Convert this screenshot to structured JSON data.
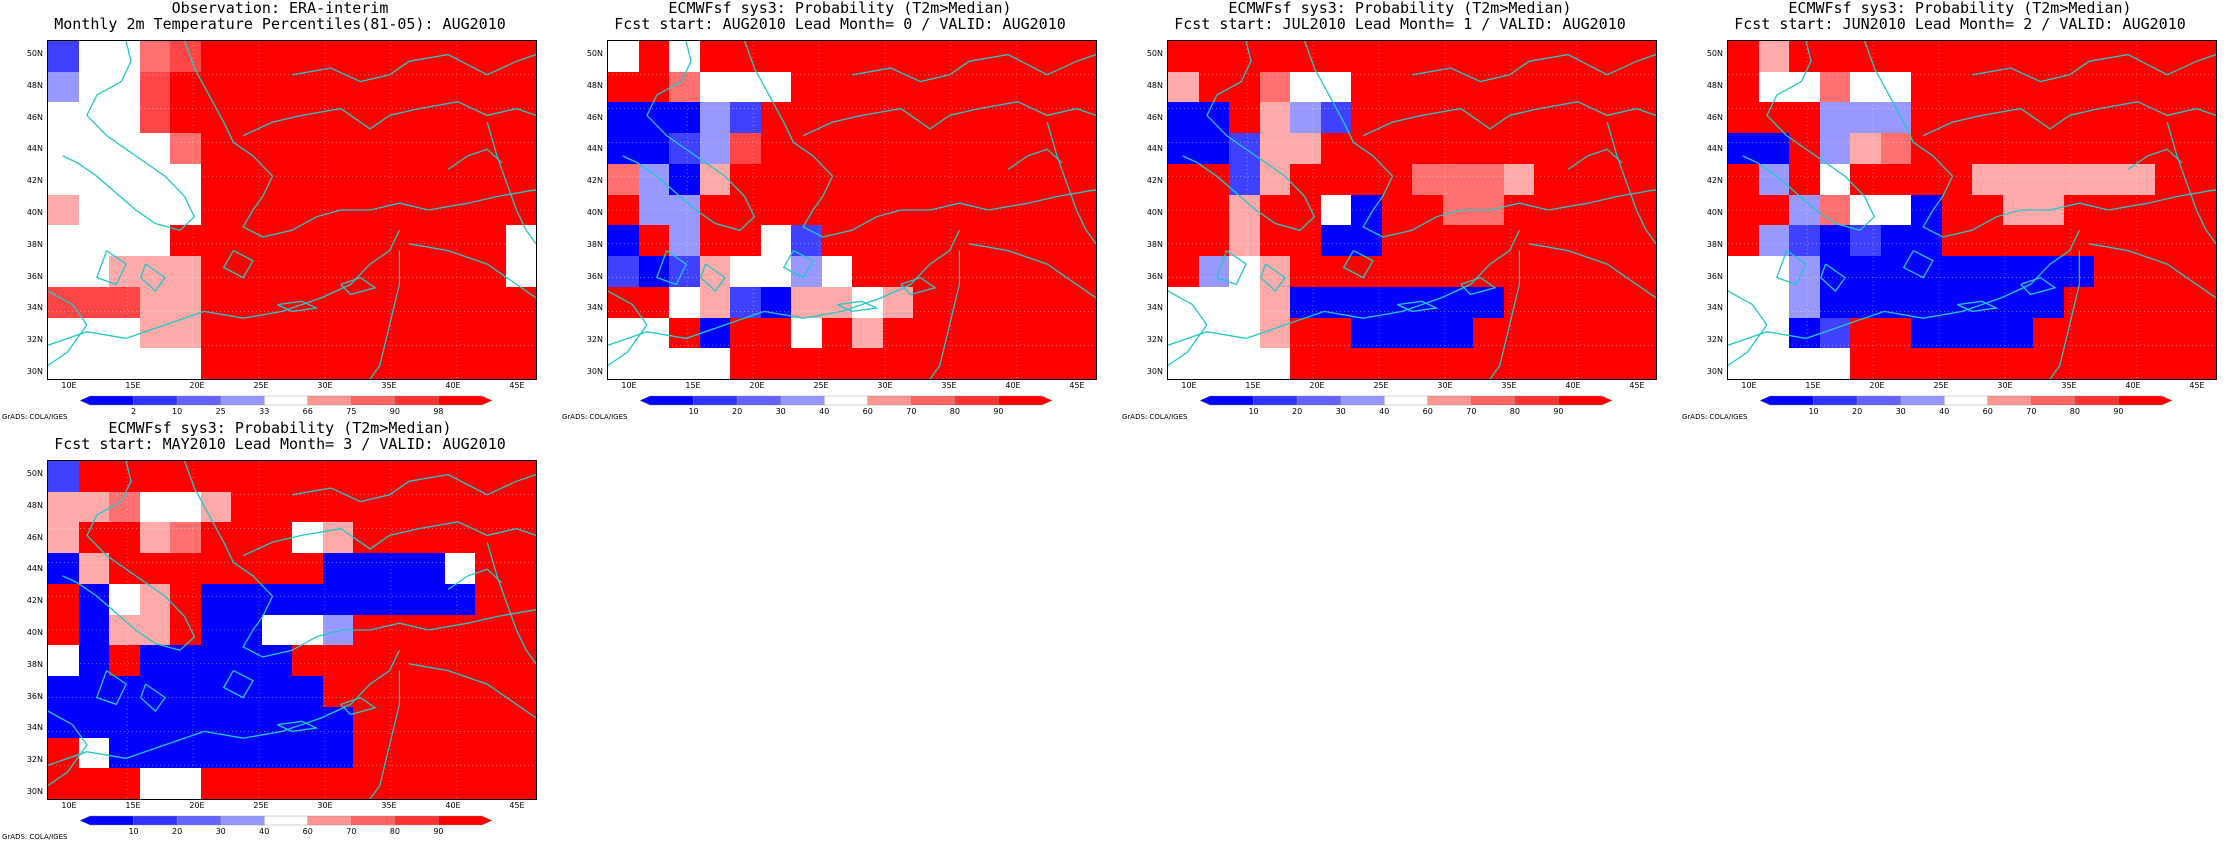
{
  "panels": [
    {
      "title1": "Observation: ERA-interim",
      "title2": "Monthly 2m Temperature Percentiles(81-05): AUG2010",
      "legend": "obs"
    },
    {
      "title1": "ECMWFsf sys3: Probability (T2m>Median)",
      "title2": "Fcst start: AUG2010  Lead Month= 0 / VALID: AUG2010",
      "legend": "prob"
    },
    {
      "title1": "ECMWFsf sys3: Probability (T2m>Median)",
      "title2": "Fcst start: JUL2010  Lead Month= 1 / VALID: AUG2010",
      "legend": "prob"
    },
    {
      "title1": "ECMWFsf sys3: Probability (T2m>Median)",
      "title2": "Fcst start: JUN2010  Lead Month= 2 / VALID: AUG2010",
      "legend": "prob"
    },
    {
      "title1": "ECMWFsf sys3: Probability (T2m>Median)",
      "title2": "Fcst start: MAY2010  Lead Month= 3 / VALID: AUG2010",
      "legend": "prob"
    }
  ],
  "lat_labels": [
    "50N",
    "48N",
    "46N",
    "44N",
    "42N",
    "40N",
    "38N",
    "36N",
    "34N",
    "32N",
    "30N"
  ],
  "lon_labels": [
    "10E",
    "15E",
    "20E",
    "25E",
    "30E",
    "35E",
    "40E",
    "45E"
  ],
  "legends": {
    "obs": [
      "2",
      "10",
      "25",
      "33",
      "66",
      "75",
      "90",
      "98"
    ],
    "prob": [
      "10",
      "20",
      "30",
      "40",
      "60",
      "70",
      "80",
      "90"
    ]
  },
  "legend_colors": [
    "#0000ff",
    "#3232ff",
    "#6464ff",
    "#9696ff",
    "#ffffff",
    "#ff9696",
    "#ff6464",
    "#ff3232",
    "#ff0000"
  ],
  "grads_credit": "GrADS: COLA/IGES",
  "level_colors": {
    "b": "#0000ff",
    "m": "#4040ff",
    "l": "#9898ff",
    "w": "#ffffff",
    "p": "#ffaaaa",
    "s": "#ff7070",
    "d": "#ff4545",
    "r": "#ff0000"
  },
  "maps": [
    [
      "mwwsdrrrrrrrrrrr",
      "lwwdrrrrrrrrrrrr",
      "wwwdrrrrrrrrrrrr",
      "wwwwsrrrrrrrrrrr",
      "wwwwwrrrrrrrrrrr",
      "pwwwwrrrrrrrrrrr",
      "wwwwrrrrrrrrrrrw",
      "wwppprrrrrrrrrrw",
      "dddpprrrrrrrrrrr",
      "wwwpprrrrrrrrrrr",
      "wwwwwrrrrrrrrrrr"
    ],
    [
      "wrwrrrrrrrrrrrrr",
      "rrswwwrrrrrrrrrr",
      "bbblmrrrrrrrrrrr",
      "bbmldrrrrrrrrrrr",
      "slbprrrrrrrrrrrr",
      "rllrrrrrrrrrrrrr",
      "brlrrwmrrrrrrrrr",
      "mbmpwwlwrrrrrrrr",
      "rrwpmbppwprrrrrr",
      "wwrbrrwrprrrrrrr",
      "wwwwrrrrrrrrrrrr"
    ],
    [
      "rrrrrrrrrrrrrrrr",
      "prrswwrrrrrrrrrr",
      "bbrplmrrrrrrrrrr",
      "bbmpprrrrrrrrrrr",
      "rrmprrrrsssprrrr",
      "rrprrwbrrssrrrrr",
      "rrprrbbrrrrrrrrr",
      "rlwprrrrrrrrrrrr",
      "wwwpbbbbbbbrrrrr",
      "wwwprrbbbbrrrrrr",
      "wwwwrrrrrrrrrrrr"
    ],
    [
      "rprrrrrrrrrrrrrr",
      "rwwswwrrrrrrrrrr",
      "rrrlllrrrrrrrrrr",
      "bbrlpsrrrrrrrrrr",
      "rlrwrrrrpppppprr",
      "rrlswwbrrpprrrrr",
      "rlmbmbbrrrrrrrrr",
      "wwlbbbbbbbbbrrrr",
      "wwlbbbbbbbbrrrrr",
      "wwbmrrbbbbrrrrrr",
      "wwwwrrrrrrrrrrrr"
    ],
    [
      "mrrrrrrrrrrrrrrr",
      "ppswwprrrrrrrrrr",
      "prrpsrrrwprrrrrr",
      "bprrrrrrrbbbbwrr",
      "rbwprbbbbbbbbbrr",
      "rbpprbbwwlrrrrrr",
      "wbrbbbbbrrrrrrrr",
      "bbbbbbbbbrrrrrrr",
      "bbbbbbbbbbrrrrrr",
      "rwbbbbbbbbrrrrrr",
      "rrrwwrrrrrrrrrrr"
    ]
  ]
}
